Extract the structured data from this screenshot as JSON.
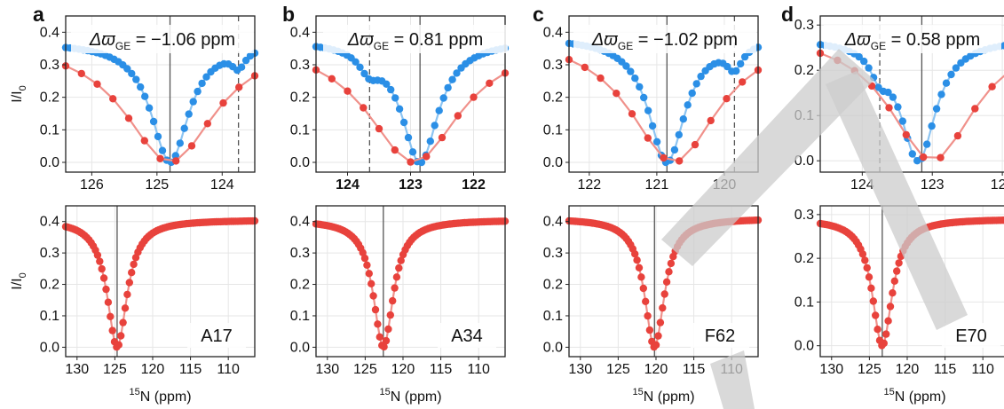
{
  "shared": {
    "ylabel": "I/I",
    "ylabel_sub": "0",
    "xlabel_sup": "15",
    "xlabel": "N (ppm)",
    "delta_symbol": "Δϖ",
    "delta_sub": "GE",
    "colors": {
      "blue": "#2b8fe6",
      "blue_line": "#8cc4f2",
      "red": "#e8423c",
      "red_line": "#f0918b",
      "grid": "#e6e6e6",
      "vline": "#555555"
    }
  },
  "chart_data": [
    {
      "id": "a-top",
      "type": "scatter",
      "panel_letter": "a",
      "annotation": "= −1.06 ppm",
      "xlim": [
        126.4,
        123.5
      ],
      "ylim": [
        -0.03,
        0.45
      ],
      "xticks": [
        "126",
        "125",
        "124"
      ],
      "xtick_values": [
        126,
        125,
        124
      ],
      "yticks": [
        "0.0",
        "0.1",
        "0.2",
        "0.3",
        "0.4"
      ],
      "ytick_values": [
        0,
        0.1,
        0.2,
        0.3,
        0.4
      ],
      "vline_solid": 124.8,
      "vline_dashed": 123.75,
      "series": [
        {
          "color": "blue",
          "center": 124.8,
          "width": 0.35,
          "base": 0.37,
          "depth": 0.37,
          "shoulder": 123.75,
          "shoulder_depth": 0.05,
          "shoulder_width": 0.12,
          "start": 126.4,
          "end": 123.5,
          "n": 44
        },
        {
          "color": "red",
          "center": 124.8,
          "width": 0.85,
          "base": 0.38,
          "depth": 0.38,
          "start": 126.4,
          "end": 123.5,
          "n": 13
        }
      ]
    },
    {
      "id": "b-top",
      "type": "scatter",
      "panel_letter": "b",
      "annotation": "= 0.81 ppm",
      "xlim": [
        124.5,
        121.5
      ],
      "ylim": [
        -0.03,
        0.45
      ],
      "xticks": [
        "124",
        "123",
        "122"
      ],
      "xtick_values": [
        124,
        123,
        122
      ],
      "xtick_bold": true,
      "yticks": [
        "0.0",
        "0.1",
        "0.2",
        "0.3",
        "0.4"
      ],
      "ytick_values": [
        0,
        0.1,
        0.2,
        0.3,
        0.4
      ],
      "vline_solid": 122.85,
      "vline_dashed": 123.65,
      "series": [
        {
          "color": "blue",
          "center": 122.85,
          "width": 0.35,
          "base": 0.375,
          "depth": 0.375,
          "shoulder": 123.65,
          "shoulder_depth": 0.06,
          "shoulder_width": 0.2,
          "start": 124.5,
          "end": 121.5,
          "n": 44
        },
        {
          "color": "red",
          "center": 122.95,
          "width": 0.9,
          "base": 0.38,
          "depth": 0.38,
          "start": 124.5,
          "end": 121.5,
          "n": 13
        }
      ]
    },
    {
      "id": "c-top",
      "type": "scatter",
      "panel_letter": "c",
      "annotation": "= −1.02 ppm",
      "xlim": [
        122.3,
        119.5
      ],
      "ylim": [
        -0.03,
        0.45
      ],
      "xticks": [
        "122",
        "121",
        "120"
      ],
      "xtick_values": [
        122,
        121,
        120
      ],
      "yticks": [
        "0.0",
        "0.1",
        "0.2",
        "0.3",
        "0.4"
      ],
      "ytick_values": [
        0,
        0.1,
        0.2,
        0.3,
        0.4
      ],
      "vline_solid": 120.85,
      "vline_dashed": 119.85,
      "series": [
        {
          "color": "blue",
          "center": 120.85,
          "width": 0.33,
          "base": 0.385,
          "depth": 0.385,
          "shoulder": 119.85,
          "shoulder_depth": 0.07,
          "shoulder_width": 0.14,
          "start": 122.3,
          "end": 119.5,
          "n": 44
        },
        {
          "color": "red",
          "center": 120.75,
          "width": 0.8,
          "base": 0.4,
          "depth": 0.4,
          "start": 122.3,
          "end": 119.5,
          "n": 13
        }
      ]
    },
    {
      "id": "d-top",
      "type": "scatter",
      "panel_letter": "d",
      "annotation": "= 0.58 ppm",
      "xlim": [
        124.6,
        121.9
      ],
      "ylim": [
        -0.025,
        0.32
      ],
      "xticks": [
        "124",
        "123",
        "122"
      ],
      "xtick_values": [
        124,
        123,
        122
      ],
      "yticks": [
        "0.0",
        "0.1",
        "0.2",
        "0.3"
      ],
      "ytick_values": [
        0,
        0.1,
        0.2,
        0.3
      ],
      "vline_solid": 123.15,
      "vline_dashed": 123.75,
      "series": [
        {
          "color": "blue",
          "center": 123.2,
          "width": 0.3,
          "base": 0.27,
          "depth": 0.27,
          "shoulder": 123.75,
          "shoulder_depth": 0.05,
          "shoulder_width": 0.15,
          "start": 124.6,
          "end": 121.9,
          "n": 40
        },
        {
          "color": "red",
          "center": 123.0,
          "width": 0.75,
          "base": 0.29,
          "depth": 0.29,
          "start": 124.6,
          "end": 121.9,
          "n": 12
        }
      ]
    },
    {
      "id": "a-bottom",
      "type": "scatter",
      "residue": "A17",
      "xlim": [
        131.5,
        106.5
      ],
      "ylim": [
        -0.03,
        0.45
      ],
      "xticks": [
        "130",
        "125",
        "120",
        "115",
        "110"
      ],
      "xtick_values": [
        130,
        125,
        120,
        115,
        110
      ],
      "yticks": [
        "0.0",
        "0.1",
        "0.2",
        "0.3",
        "0.4"
      ],
      "ytick_values": [
        0,
        0.1,
        0.2,
        0.3,
        0.4
      ],
      "vline_solid": 124.7,
      "series": [
        {
          "color": "red",
          "center": 124.7,
          "width": 1.6,
          "base": 0.405,
          "depth": 0.405,
          "start": 131.5,
          "end": 106.5,
          "n": 90
        }
      ]
    },
    {
      "id": "b-bottom",
      "type": "scatter",
      "residue": "A34",
      "xlim": [
        131.5,
        106.5
      ],
      "ylim": [
        -0.03,
        0.45
      ],
      "xticks": [
        "130",
        "125",
        "120",
        "115",
        "110"
      ],
      "xtick_values": [
        130,
        125,
        120,
        115,
        110
      ],
      "yticks": [
        "0.0",
        "0.1",
        "0.2",
        "0.3",
        "0.4"
      ],
      "ytick_values": [
        0,
        0.1,
        0.2,
        0.3,
        0.4
      ],
      "vline_solid": 122.6,
      "series": [
        {
          "color": "red",
          "center": 122.6,
          "width": 1.6,
          "base": 0.405,
          "depth": 0.405,
          "start": 131.5,
          "end": 106.5,
          "n": 90
        }
      ]
    },
    {
      "id": "c-bottom",
      "type": "scatter",
      "residue": "F62",
      "xlim": [
        131.5,
        106.5
      ],
      "ylim": [
        -0.03,
        0.45
      ],
      "xticks": [
        "130",
        "125",
        "120",
        "115",
        "110"
      ],
      "xtick_values": [
        130,
        125,
        120,
        115,
        110
      ],
      "yticks": [
        "0.0",
        "0.1",
        "0.2",
        "0.3",
        "0.4"
      ],
      "ytick_values": [
        0,
        0.1,
        0.2,
        0.3,
        0.4
      ],
      "vline_solid": 120.2,
      "series": [
        {
          "color": "red",
          "center": 120.2,
          "width": 1.6,
          "base": 0.41,
          "depth": 0.41,
          "start": 131.5,
          "end": 106.5,
          "n": 90
        }
      ]
    },
    {
      "id": "d-bottom",
      "type": "scatter",
      "residue": "E70",
      "xlim": [
        131.5,
        106.5
      ],
      "ylim": [
        -0.025,
        0.32
      ],
      "xticks": [
        "130",
        "125",
        "120",
        "115",
        "110"
      ],
      "xtick_values": [
        130,
        125,
        120,
        115,
        110
      ],
      "yticks": [
        "0.0",
        "0.1",
        "0.2",
        "0.3"
      ],
      "ytick_values": [
        0,
        0.1,
        0.2,
        0.3
      ],
      "vline_solid": 123.3,
      "series": [
        {
          "color": "red",
          "center": 123.3,
          "width": 1.6,
          "base": 0.29,
          "depth": 0.29,
          "start": 131.5,
          "end": 106.5,
          "n": 90
        }
      ]
    }
  ]
}
